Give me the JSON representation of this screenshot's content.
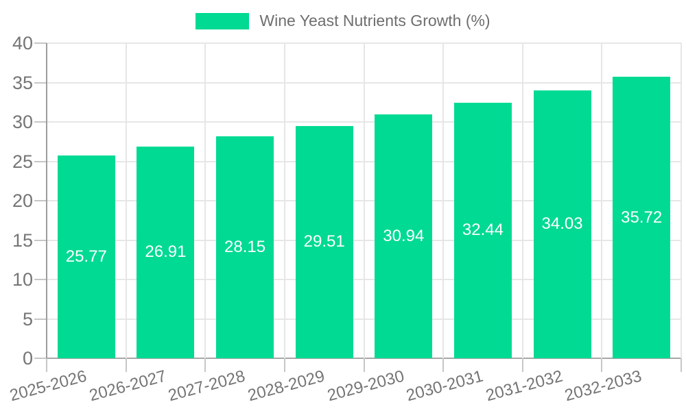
{
  "chart_data": {
    "type": "bar",
    "title": "Wine Yeast Nutrients Growth (%)",
    "legend_position": "top",
    "legend": [
      {
        "label": "Wine Yeast Nutrients Growth (%)",
        "color": "#00da92"
      }
    ],
    "categories": [
      "2025-2026",
      "2026-2027",
      "2027-2028",
      "2028-2029",
      "2029-2030",
      "2030-2031",
      "2031-2032",
      "2032-2033"
    ],
    "values": [
      25.77,
      26.91,
      28.15,
      29.51,
      30.94,
      32.44,
      34.03,
      35.72
    ],
    "value_labels": [
      "25.77",
      "26.91",
      "28.15",
      "29.51",
      "30.94",
      "32.44",
      "34.03",
      "35.72"
    ],
    "xlabel": "",
    "ylabel": "",
    "ylim": [
      0,
      40
    ],
    "ytick_step": 5,
    "ytick_labels": [
      "0",
      "5",
      "10",
      "15",
      "20",
      "25",
      "30",
      "35",
      "40"
    ],
    "grid": true,
    "bar_color": "#00da92",
    "value_label_color": "#ffffff",
    "axis_text_color": "#757575"
  }
}
